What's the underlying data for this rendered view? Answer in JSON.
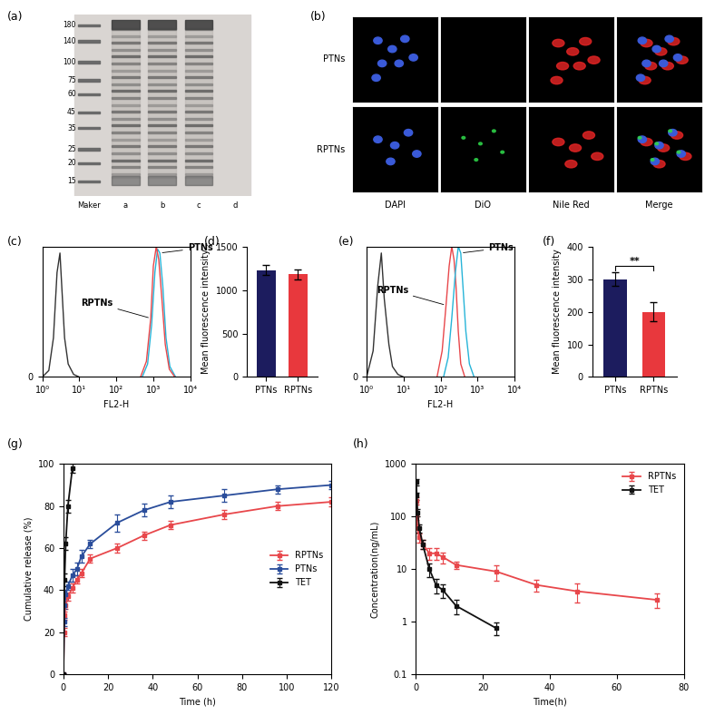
{
  "chart_data": [
    {
      "type": "gel",
      "panel": "(a)",
      "ladder": [
        180,
        140,
        100,
        75,
        60,
        45,
        35,
        25,
        20,
        15
      ],
      "lanes": [
        "Maker",
        "a",
        "b",
        "c",
        "d"
      ]
    },
    {
      "type": "image_grid",
      "panel": "(b)",
      "rows": [
        "PTNs",
        "RPTNs"
      ],
      "columns": [
        "DAPI",
        "DiO",
        "Nile Red",
        "Merge"
      ]
    },
    {
      "type": "line",
      "panel": "(c)",
      "xlabel": "FL2-H",
      "log": "x",
      "xlim": [
        1,
        10000
      ],
      "xticks": [
        {
          "value": 1,
          "label": "10⁰"
        },
        {
          "value": 10,
          "label": "10¹"
        },
        {
          "value": 100,
          "label": "10²"
        },
        {
          "value": 1000,
          "label": "10³"
        },
        {
          "value": 10000,
          "label": "10⁴"
        }
      ],
      "ylim": [
        0,
        100
      ],
      "yticks": [
        0
      ],
      "series": [
        {
          "color": "#333333",
          "x": [
            1,
            1.5,
            2,
            2.5,
            3,
            3.5,
            4,
            5,
            7,
            10
          ],
          "values": [
            0,
            5,
            30,
            80,
            95,
            60,
            30,
            10,
            2,
            0
          ]
        },
        {
          "name": "PTNs",
          "color": "#27b4d8",
          "x": [
            500,
            700,
            900,
            1100,
            1300,
            1500,
            1800,
            2200,
            2800,
            4000
          ],
          "values": [
            0,
            10,
            40,
            80,
            98,
            95,
            70,
            30,
            8,
            0
          ]
        },
        {
          "name": "RPTNs",
          "color": "#e8474b",
          "x": [
            450,
            650,
            850,
            1000,
            1200,
            1400,
            1700,
            2100,
            2700,
            3800
          ],
          "values": [
            0,
            12,
            45,
            85,
            100,
            90,
            60,
            25,
            6,
            0
          ]
        }
      ],
      "annotations": [
        {
          "text": "RPTNs",
          "x": 850,
          "y": 45
        },
        {
          "text": "PTNs",
          "x": 1500,
          "y": 95
        }
      ]
    },
    {
      "type": "bar",
      "panel": "(d)",
      "ylabel": "Mean fluorescence intensity",
      "categories": [
        "PTNs",
        "RPTNs"
      ],
      "values": [
        1230,
        1180
      ],
      "errors": [
        60,
        60
      ],
      "colors": [
        "#1c1c5e",
        "#e8383d"
      ],
      "ylim": [
        0,
        1500
      ],
      "yticks": [
        0,
        500,
        1000,
        1500
      ]
    },
    {
      "type": "line",
      "panel": "(e)",
      "xlabel": "FL2-H",
      "log": "x",
      "xlim": [
        1,
        10000
      ],
      "xticks": [
        {
          "value": 1,
          "label": "10⁰"
        },
        {
          "value": 10,
          "label": "10¹"
        },
        {
          "value": 100,
          "label": "10²"
        },
        {
          "value": 1000,
          "label": "10³"
        },
        {
          "value": 10000,
          "label": "10⁴"
        }
      ],
      "ylim": [
        0,
        100
      ],
      "yticks": [
        0
      ],
      "series": [
        {
          "color": "#333333",
          "x": [
            1,
            1.5,
            2,
            2.5,
            3,
            4,
            5,
            7,
            10
          ],
          "values": [
            0,
            20,
            70,
            95,
            60,
            25,
            8,
            2,
            0
          ]
        },
        {
          "name": "RPTNs",
          "color": "#e8474b",
          "x": [
            80,
            110,
            140,
            170,
            200,
            230,
            260,
            300,
            350,
            450
          ],
          "values": [
            0,
            20,
            55,
            85,
            100,
            90,
            70,
            35,
            10,
            0
          ]
        },
        {
          "name": "PTNs",
          "color": "#27b4d8",
          "x": [
            120,
            160,
            200,
            250,
            300,
            350,
            400,
            480,
            600,
            800
          ],
          "values": [
            0,
            15,
            45,
            80,
            100,
            95,
            70,
            35,
            10,
            0
          ]
        }
      ],
      "annotations": [
        {
          "text": "RPTNs",
          "x": 140,
          "y": 55
        },
        {
          "text": "PTNs",
          "x": 350,
          "y": 95
        }
      ]
    },
    {
      "type": "bar",
      "panel": "(f)",
      "ylabel": "Mean fluorescence intensity",
      "categories": [
        "PTNs",
        "RPTNs"
      ],
      "values": [
        300,
        200
      ],
      "errors": [
        20,
        30
      ],
      "colors": [
        "#1c1c5e",
        "#e8383d"
      ],
      "ylim": [
        0,
        400
      ],
      "yticks": [
        0,
        100,
        200,
        300,
        400
      ],
      "significance": {
        "text": "**",
        "between": [
          0,
          1
        ],
        "y": 340
      }
    },
    {
      "type": "line",
      "panel": "(g)",
      "xlabel": "Time (h)",
      "ylabel": "Cumulative release (%)",
      "xlim": [
        0,
        120
      ],
      "xticks": [
        0,
        20,
        40,
        60,
        80,
        100,
        120
      ],
      "ylim": [
        0,
        100
      ],
      "yticks": [
        0,
        20,
        40,
        60,
        80,
        100
      ],
      "legend": "center right",
      "series": [
        {
          "name": "RPTNs",
          "color": "#e8474b",
          "marker": "s",
          "x": [
            0,
            0.25,
            0.5,
            1,
            2,
            4,
            6,
            8,
            12,
            24,
            36,
            48,
            72,
            96,
            120
          ],
          "values": [
            0,
            20,
            28,
            33,
            37,
            41,
            45,
            48,
            55,
            60,
            66,
            71,
            76,
            80,
            82
          ],
          "errors": [
            0,
            2,
            2,
            2,
            2,
            2,
            2,
            2,
            2,
            2,
            2,
            2,
            2,
            2,
            2
          ]
        },
        {
          "name": "PTNs",
          "color": "#2a4d9b",
          "marker": "s",
          "x": [
            0,
            0.25,
            0.5,
            1,
            2,
            4,
            6,
            8,
            12,
            24,
            36,
            48,
            72,
            96,
            120
          ],
          "values": [
            0,
            25,
            33,
            38,
            42,
            47,
            50,
            56,
            62,
            72,
            78,
            82,
            85,
            88,
            90
          ],
          "errors": [
            0,
            2,
            2,
            2,
            2,
            3,
            3,
            3,
            2,
            4,
            3,
            3,
            3,
            2,
            2
          ]
        },
        {
          "name": "TET",
          "color": "#111111",
          "marker": "s",
          "x": [
            0,
            0.5,
            1,
            2,
            4
          ],
          "values": [
            0,
            45,
            62,
            80,
            98
          ],
          "errors": [
            0,
            3,
            3,
            3,
            2
          ]
        }
      ]
    },
    {
      "type": "line",
      "panel": "(h)",
      "xlabel": "Time(h)",
      "ylabel": "Concentration(ng/mL)",
      "log": "y",
      "xlim": [
        0,
        80
      ],
      "xticks": [
        0,
        20,
        40,
        60,
        80
      ],
      "ylim": [
        0.1,
        1000
      ],
      "yticks": [
        0.1,
        1,
        10,
        100,
        1000
      ],
      "legend": "upper right",
      "series": [
        {
          "name": "RPTNs",
          "color": "#e8474b",
          "marker": "s",
          "x": [
            0.083,
            0.25,
            0.5,
            1,
            2,
            4,
            6,
            8,
            12,
            24,
            36,
            48,
            72
          ],
          "values": [
            200,
            100,
            60,
            40,
            30,
            20,
            20,
            17,
            12,
            9,
            5,
            3.8,
            2.6
          ],
          "errors": [
            30,
            15,
            10,
            8,
            6,
            5,
            5,
            4,
            2,
            3,
            1.2,
            1.5,
            0.8
          ]
        },
        {
          "name": "TET",
          "color": "#111111",
          "marker": "s",
          "x": [
            0.083,
            0.25,
            0.5,
            1,
            2,
            4,
            6,
            8,
            12,
            24
          ],
          "values": [
            450,
            250,
            120,
            60,
            30,
            10,
            5,
            4,
            2,
            0.75
          ],
          "errors": [
            60,
            40,
            20,
            10,
            6,
            3,
            1.5,
            1.2,
            0.6,
            0.2
          ]
        }
      ]
    }
  ]
}
